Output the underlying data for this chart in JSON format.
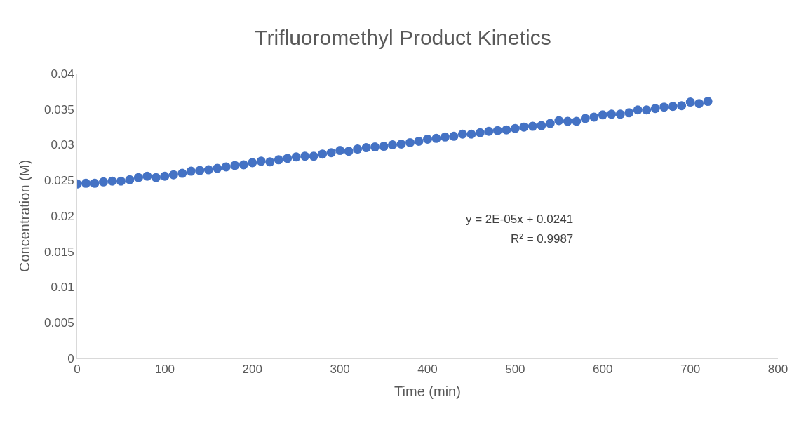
{
  "chart_data": {
    "type": "scatter",
    "title": "Trifluoromethyl Product Kinetics",
    "xlabel": "Time (min)",
    "ylabel": "Concentration (M)",
    "x": [
      0,
      10,
      20,
      30,
      40,
      50,
      60,
      70,
      80,
      90,
      100,
      110,
      120,
      130,
      140,
      150,
      160,
      170,
      180,
      190,
      200,
      210,
      220,
      230,
      240,
      250,
      260,
      270,
      280,
      290,
      300,
      310,
      320,
      330,
      340,
      350,
      360,
      370,
      380,
      390,
      400,
      410,
      420,
      430,
      440,
      450,
      460,
      470,
      480,
      490,
      500,
      510,
      520,
      530,
      540,
      550,
      560,
      570,
      580,
      590,
      600,
      610,
      620,
      630,
      640,
      650,
      660,
      670,
      680,
      690,
      700,
      710,
      720
    ],
    "series": [
      {
        "color": "#4472c4",
        "values": [
          0.0245,
          0.0246,
          0.0246,
          0.0248,
          0.0249,
          0.0249,
          0.0251,
          0.0254,
          0.0256,
          0.0254,
          0.0256,
          0.0258,
          0.026,
          0.0263,
          0.0264,
          0.0265,
          0.0267,
          0.0269,
          0.0271,
          0.0272,
          0.0275,
          0.0277,
          0.0276,
          0.0279,
          0.0281,
          0.0283,
          0.0284,
          0.0284,
          0.0287,
          0.0289,
          0.0292,
          0.0291,
          0.0294,
          0.0296,
          0.0297,
          0.0298,
          0.03,
          0.0301,
          0.0303,
          0.0305,
          0.0308,
          0.0309,
          0.0311,
          0.0312,
          0.0315,
          0.0315,
          0.0317,
          0.0319,
          0.032,
          0.0321,
          0.0323,
          0.0325,
          0.0326,
          0.0327,
          0.033,
          0.0334,
          0.0333,
          0.0333,
          0.0337,
          0.0339,
          0.0342,
          0.0343,
          0.0343,
          0.0345,
          0.0349,
          0.0349,
          0.0351,
          0.0353,
          0.0354,
          0.0355,
          0.036,
          0.0358,
          0.0361
        ]
      }
    ],
    "xlim": [
      0,
      800
    ],
    "xticks": [
      0,
      100,
      200,
      300,
      400,
      500,
      600,
      700,
      800
    ],
    "ylim": [
      0,
      0.04
    ],
    "yticks": [
      0,
      0.005,
      0.01,
      0.015,
      0.02,
      0.025,
      0.03,
      0.035,
      0.04
    ],
    "annotations": [
      "y = 2E-05x + 0.0241",
      "R² = 0.9987"
    ],
    "marker": "circle"
  }
}
